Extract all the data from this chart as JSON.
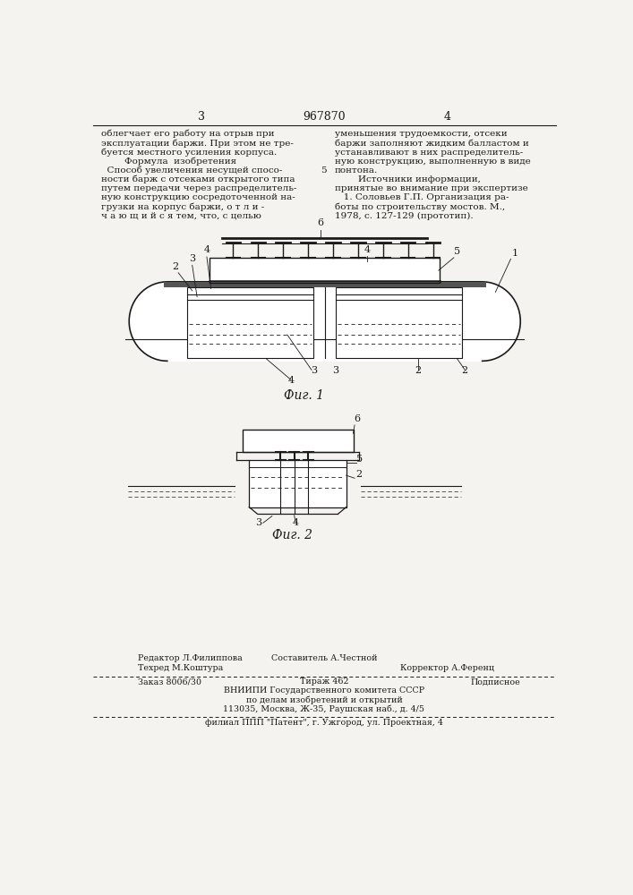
{
  "bg_color": "#f5f3ef",
  "page_number_left": "3",
  "page_number_center": "967870",
  "page_number_right": "4",
  "col1_text": [
    "облегчает его работу на отрыв при",
    "эксплуатации баржи. При этом не тре-",
    "буется местного усиления корпуса.",
    "        Формула  изобретения",
    "  Способ увеличения несущей спосо-",
    "ности барж с отсеками открытого типа",
    "путем передачи через распределитель-",
    "ную конструкцию сосредоточенной на-",
    "грузки на корпус баржи, о т л и -",
    "ч а ю щ и й с я тем, что, с целью"
  ],
  "line_number": "5",
  "col2_text": [
    "уменьшения трудоемкости, отсеки",
    "баржи заполняют жидким балластом и",
    "устанавливают в них распределитель-",
    "ную конструкцию, выполненную в виде",
    "понтона.",
    "        Источники информации,",
    "принятые во внимание при экспертизе",
    "   1. Соловьев Г.П. Организация ра-",
    "боты по строительству мостов. М.,",
    "1978, с. 127-129 (прототип)."
  ],
  "fig1_caption": "Фиг. 1",
  "fig2_caption": "Фиг. 2",
  "footer_editor": "Редактор Л.Филиппова",
  "footer_composer": "Составитель А.Честной",
  "footer_tech": "Техред М.Коштура",
  "footer_corrector": "Корректор А.Ференц",
  "footer_order": "Заказ 8006/30",
  "footer_print": "Тираж 462",
  "footer_sub": "Подписное",
  "footer_org1": "ВНИИПИ Государственного комитета СССР",
  "footer_org2": "по делам изобретений и открытий",
  "footer_addr": "113035, Москва, Ж-35, Раушская наб., д. 4/5",
  "footer_branch": "филиал ППП \"Патент\", г. Ужгород, ул. Проектная, 4"
}
